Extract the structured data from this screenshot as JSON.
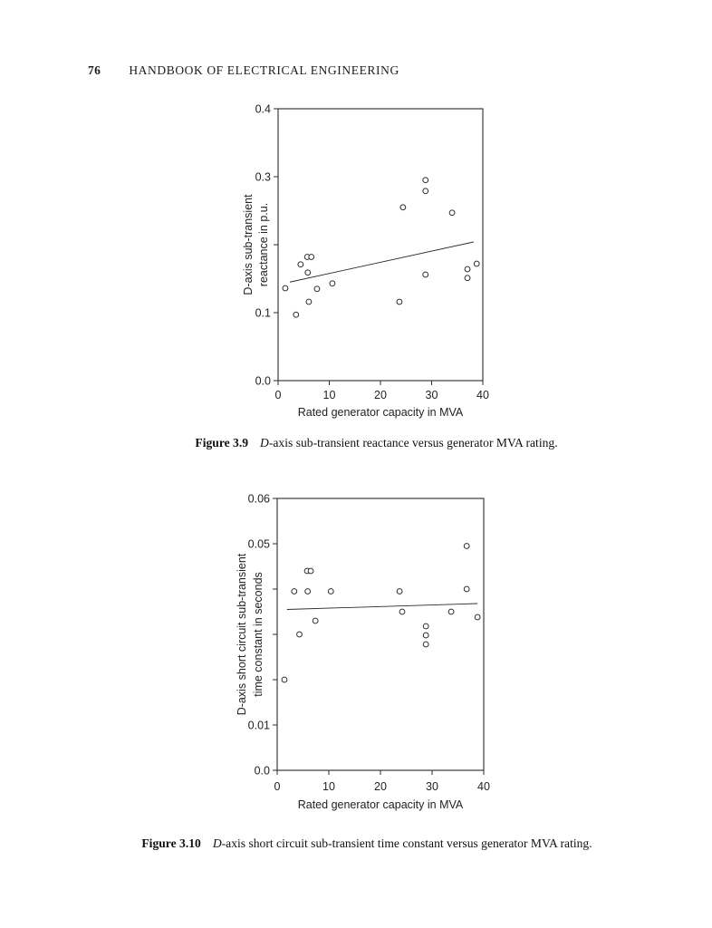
{
  "page": {
    "number": "76",
    "running_title": "HANDBOOK OF ELECTRICAL ENGINEERING"
  },
  "figures": [
    {
      "label": "Figure 3.9",
      "caption_italic": "D",
      "caption_rest": "-axis sub-transient reactance versus generator MVA rating."
    },
    {
      "label": "Figure 3.10",
      "caption_italic": "D",
      "caption_rest": "-axis short circuit sub-transient time constant versus generator MVA rating."
    }
  ],
  "chart_data": [
    {
      "type": "scatter",
      "title": "",
      "xlabel": "Rated generator capacity in MVA",
      "ylabel_lines": [
        "D-axis sub-transient",
        "reactance in p.u."
      ],
      "xlim": [
        0,
        40
      ],
      "ylim": [
        0,
        0.4
      ],
      "grid": false,
      "legend": "none",
      "marker": "open-circle",
      "line_color": "#2b2b2b",
      "xticks": [
        {
          "value": 0,
          "label": "0"
        },
        {
          "value": 10,
          "label": "10"
        },
        {
          "value": 20,
          "label": "20"
        },
        {
          "value": 30,
          "label": "30"
        },
        {
          "value": 40,
          "label": "40"
        }
      ],
      "yticks": [
        {
          "value": 0.4,
          "label": "0.4"
        },
        {
          "value": 0.3,
          "label": "0.3"
        },
        {
          "value": 0.2,
          "label": ""
        },
        {
          "value": 0.1,
          "label": "0.1"
        },
        {
          "value": 0.0,
          "label": "0.0"
        }
      ],
      "points": [
        [
          1.4,
          0.136
        ],
        [
          3.5,
          0.097
        ],
        [
          4.4,
          0.171
        ],
        [
          5.7,
          0.182
        ],
        [
          6.5,
          0.182
        ],
        [
          5.8,
          0.159
        ],
        [
          6.0,
          0.116
        ],
        [
          7.6,
          0.135
        ],
        [
          10.6,
          0.143
        ],
        [
          23.7,
          0.116
        ],
        [
          24.4,
          0.255
        ],
        [
          28.8,
          0.295
        ],
        [
          28.8,
          0.279
        ],
        [
          28.8,
          0.156
        ],
        [
          34.0,
          0.247
        ],
        [
          37.0,
          0.151
        ],
        [
          37.0,
          0.164
        ],
        [
          38.8,
          0.172
        ]
      ],
      "trend_line": {
        "x1": 2.3,
        "y1": 0.145,
        "x2": 38.2,
        "y2": 0.204
      }
    },
    {
      "type": "scatter",
      "title": "",
      "xlabel": "Rated generator capacity in MVA",
      "ylabel_lines": [
        "D-axis short circuit sub-transient",
        "time constant in seconds"
      ],
      "xlim": [
        0,
        40
      ],
      "ylim": [
        0,
        0.06
      ],
      "grid": false,
      "legend": "none",
      "marker": "open-circle",
      "line_color": "#2b2b2b",
      "xticks": [
        {
          "value": 0,
          "label": "0"
        },
        {
          "value": 10,
          "label": "10"
        },
        {
          "value": 20,
          "label": "20"
        },
        {
          "value": 30,
          "label": "30"
        },
        {
          "value": 40,
          "label": "40"
        }
      ],
      "yticks": [
        {
          "value": 0.06,
          "label": "0.06"
        },
        {
          "value": 0.05,
          "label": "0.05"
        },
        {
          "value": 0.04,
          "label": ""
        },
        {
          "value": 0.03,
          "label": ""
        },
        {
          "value": 0.02,
          "label": ""
        },
        {
          "value": 0.01,
          "label": "0.01"
        },
        {
          "value": 0.0,
          "label": "0.0"
        }
      ],
      "points": [
        [
          1.4,
          0.02
        ],
        [
          3.3,
          0.0395
        ],
        [
          4.3,
          0.03
        ],
        [
          5.8,
          0.044
        ],
        [
          6.5,
          0.044
        ],
        [
          5.9,
          0.0395
        ],
        [
          7.4,
          0.033
        ],
        [
          10.4,
          0.0395
        ],
        [
          23.7,
          0.0395
        ],
        [
          24.2,
          0.035
        ],
        [
          28.8,
          0.0318
        ],
        [
          28.8,
          0.0298
        ],
        [
          28.8,
          0.0278
        ],
        [
          33.7,
          0.035
        ],
        [
          36.7,
          0.0495
        ],
        [
          36.7,
          0.04
        ],
        [
          38.8,
          0.0338
        ]
      ],
      "trend_line": {
        "x1": 1.9,
        "y1": 0.0355,
        "x2": 38.8,
        "y2": 0.0368
      }
    }
  ]
}
